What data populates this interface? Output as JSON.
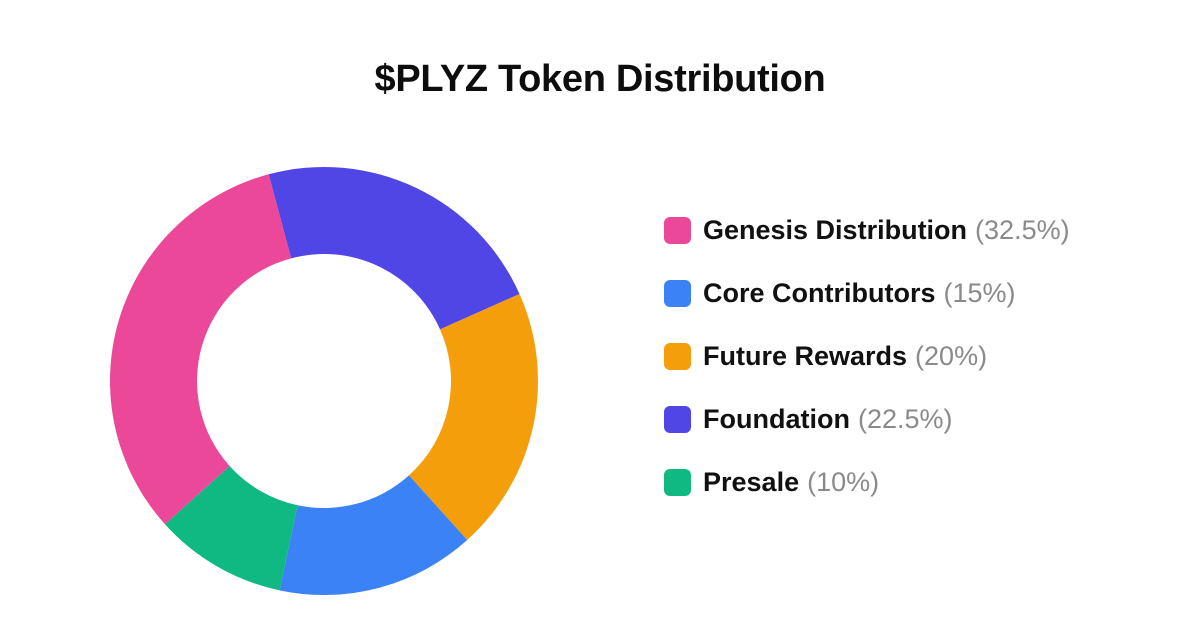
{
  "chart_data": {
    "type": "pie",
    "variant": "donut",
    "title": "$PLYZ Token Distribution",
    "legend_position": "right",
    "slices": [
      {
        "name": "Genesis Distribution",
        "value": 32.5,
        "label": "(32.5%)",
        "color": "#EC4899"
      },
      {
        "name": "Core Contributors",
        "value": 15,
        "label": "(15%)",
        "color": "#3B82F6"
      },
      {
        "name": "Future Rewards",
        "value": 20,
        "label": "(20%)",
        "color": "#F59E0B"
      },
      {
        "name": "Foundation",
        "value": 22.5,
        "label": "(22.5%)",
        "color": "#4F46E5"
      },
      {
        "name": "Presale",
        "value": 10,
        "label": "(10%)",
        "color": "#10B981"
      }
    ],
    "draw_order": [
      "Foundation",
      "Future Rewards",
      "Core Contributors",
      "Presale",
      "Genesis Distribution"
    ]
  }
}
